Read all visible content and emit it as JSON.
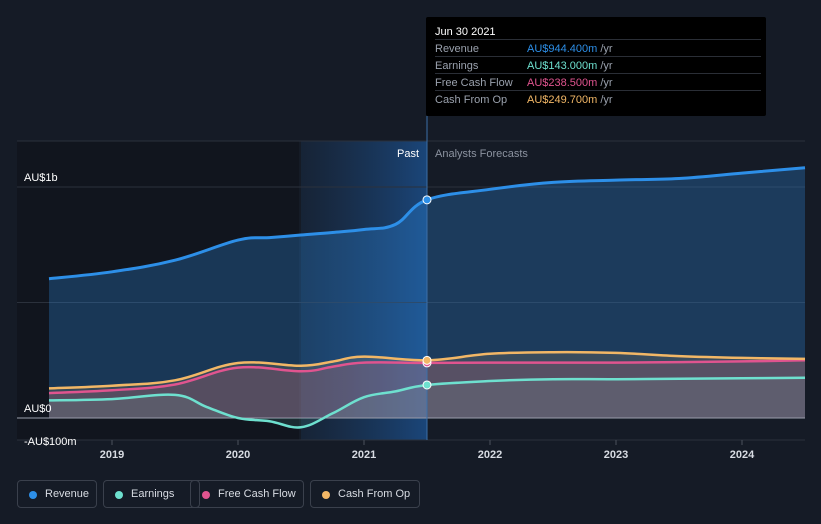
{
  "tooltip": {
    "date": "Jun 30 2021",
    "rows": [
      {
        "label": "Revenue",
        "value": "AU$944.400m",
        "unit": "/yr",
        "color": "#2d8fe8"
      },
      {
        "label": "Earnings",
        "value": "AU$143.000m",
        "unit": "/yr",
        "color": "#6ee0cf"
      },
      {
        "label": "Free Cash Flow",
        "value": "AU$238.500m",
        "unit": "/yr",
        "color": "#e0548f"
      },
      {
        "label": "Cash From Op",
        "value": "AU$249.700m",
        "unit": "/yr",
        "color": "#f2b766"
      }
    ]
  },
  "legend": [
    {
      "label": "Revenue",
      "color": "#2d8fe8"
    },
    {
      "label": "Earnings",
      "color": "#6ee0cf"
    },
    {
      "label": "Free Cash Flow",
      "color": "#e0548f"
    },
    {
      "label": "Cash From Op",
      "color": "#f2b766"
    }
  ],
  "chart_data": {
    "type": "line",
    "y_unit": "AU$m",
    "ylim": [
      -100,
      1200
    ],
    "y_labels": [
      {
        "value": 1000,
        "text": "AU$1b"
      },
      {
        "value": 0,
        "text": "AU$0"
      },
      {
        "value": -100,
        "text": "-AU$100m"
      }
    ],
    "xlim": [
      2018.5,
      2024.5
    ],
    "x_ticks": [
      "2019",
      "2020",
      "2021",
      "2022",
      "2023",
      "2024"
    ],
    "x_tick_values": [
      2019,
      2020,
      2021,
      2022,
      2023,
      2024
    ],
    "past_label": "Past",
    "forecast_label": "Analysts Forecasts",
    "divider_x": 2021.5,
    "highlight_start": 2020.5,
    "series": [
      {
        "name": "Revenue",
        "color": "#2d8fe8",
        "points": [
          [
            2018.5,
            603
          ],
          [
            2019,
            633
          ],
          [
            2019.5,
            683
          ],
          [
            2020,
            770
          ],
          [
            2020.25,
            781
          ],
          [
            2020.5,
            792
          ],
          [
            2020.75,
            803
          ],
          [
            2021,
            816
          ],
          [
            2021.25,
            838
          ],
          [
            2021.5,
            944.4
          ],
          [
            2022,
            990
          ],
          [
            2022.5,
            1020
          ],
          [
            2023,
            1030
          ],
          [
            2023.5,
            1037
          ],
          [
            2024,
            1060
          ],
          [
            2024.5,
            1083
          ]
        ]
      },
      {
        "name": "Earnings",
        "color": "#6ee0cf",
        "points": [
          [
            2018.5,
            76
          ],
          [
            2019,
            82
          ],
          [
            2019.5,
            100
          ],
          [
            2019.75,
            48
          ],
          [
            2020,
            0
          ],
          [
            2020.25,
            -14
          ],
          [
            2020.5,
            -40
          ],
          [
            2020.75,
            20
          ],
          [
            2021,
            90
          ],
          [
            2021.25,
            115
          ],
          [
            2021.5,
            143
          ],
          [
            2022,
            160
          ],
          [
            2022.5,
            168
          ],
          [
            2023,
            168
          ],
          [
            2023.5,
            170
          ],
          [
            2024,
            172
          ],
          [
            2024.5,
            174
          ]
        ]
      },
      {
        "name": "Free Cash Flow",
        "color": "#e0548f",
        "points": [
          [
            2018.5,
            108
          ],
          [
            2019,
            120
          ],
          [
            2019.5,
            145
          ],
          [
            2020,
            218
          ],
          [
            2020.5,
            202
          ],
          [
            2020.75,
            222
          ],
          [
            2021,
            240
          ],
          [
            2021.5,
            238.5
          ],
          [
            2022,
            240
          ],
          [
            2022.5,
            240
          ],
          [
            2023,
            240
          ],
          [
            2023.5,
            242
          ],
          [
            2024,
            245
          ],
          [
            2024.5,
            250
          ]
        ]
      },
      {
        "name": "Cash From Op",
        "color": "#f2b766",
        "points": [
          [
            2018.5,
            128
          ],
          [
            2019,
            140
          ],
          [
            2019.5,
            163
          ],
          [
            2020,
            238
          ],
          [
            2020.5,
            226
          ],
          [
            2020.75,
            244
          ],
          [
            2021,
            266
          ],
          [
            2021.5,
            249.7
          ],
          [
            2022,
            278
          ],
          [
            2022.5,
            285
          ],
          [
            2023,
            282
          ],
          [
            2023.5,
            268
          ],
          [
            2024,
            260
          ],
          [
            2024.5,
            256
          ]
        ]
      }
    ],
    "hover_values": [
      944.4,
      143.0,
      238.5,
      249.7
    ]
  }
}
